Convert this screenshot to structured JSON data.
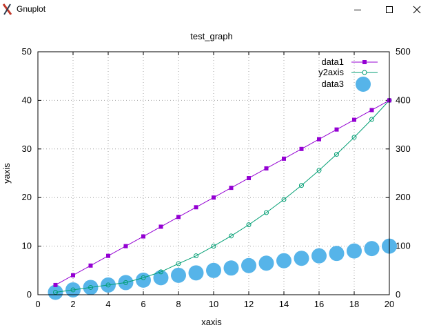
{
  "window": {
    "title": "Gnuplot",
    "icon": "gnuplot-app-icon",
    "controls": [
      "minimize-icon",
      "maximize-icon",
      "close-icon"
    ]
  },
  "colors": {
    "data1": "#9400d3",
    "y2axis": "#009e73",
    "data3": "#56b4e9",
    "grid": "#a0a0a0"
  },
  "chart_data": {
    "type": "line",
    "title": "test_graph",
    "xlabel": "xaxis",
    "ylabel": "yaxis",
    "xlim": [
      0,
      20
    ],
    "ylim": [
      0,
      50
    ],
    "y2lim": [
      0,
      500
    ],
    "xticks": [
      "0",
      "2",
      "4",
      "6",
      "8",
      "10",
      "12",
      "14",
      "16",
      "18",
      "20"
    ],
    "yticks": [
      "0",
      "10",
      "20",
      "30",
      "40",
      "50"
    ],
    "y2ticks": [
      "0",
      "100",
      "200",
      "300",
      "400",
      "500"
    ],
    "grid": true,
    "legend_position": "top-right",
    "series": [
      {
        "name": "data1",
        "axis": "y",
        "style": "linespoints-square",
        "x": [
          1,
          2,
          3,
          4,
          5,
          6,
          7,
          8,
          9,
          10,
          11,
          12,
          13,
          14,
          15,
          16,
          17,
          18,
          19,
          20
        ],
        "values": [
          2,
          4,
          6,
          8,
          10,
          12,
          14,
          16,
          18,
          20,
          22,
          24,
          26,
          28,
          30,
          32,
          34,
          36,
          38,
          40
        ]
      },
      {
        "name": "y2axis",
        "axis": "y2",
        "style": "linespoints-circle",
        "x": [
          1,
          2,
          3,
          4,
          5,
          6,
          7,
          8,
          9,
          10,
          11,
          12,
          13,
          14,
          15,
          16,
          17,
          18,
          19,
          20
        ],
        "values": [
          5,
          10,
          15,
          20,
          25,
          35,
          47,
          64,
          80,
          100,
          121,
          144,
          169,
          196,
          225,
          256,
          289,
          324,
          361,
          400
        ]
      },
      {
        "name": "data3",
        "axis": "y",
        "style": "points-large-circle",
        "x": [
          1,
          2,
          3,
          4,
          5,
          6,
          7,
          8,
          9,
          10,
          11,
          12,
          13,
          14,
          15,
          16,
          17,
          18,
          19,
          20
        ],
        "values": [
          0.5,
          1,
          1.5,
          2,
          2.5,
          3,
          3.5,
          4,
          4.5,
          5,
          5.5,
          6,
          6.5,
          7,
          7.5,
          8,
          8.5,
          9,
          9.5,
          10
        ]
      }
    ]
  }
}
